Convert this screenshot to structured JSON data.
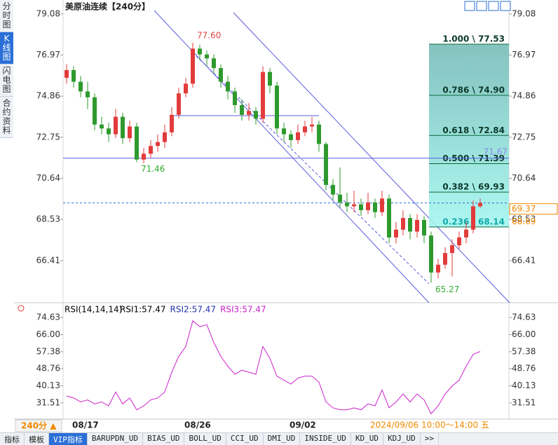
{
  "ui": {
    "sidebar": [
      "分时图",
      "K线图",
      "闪电图",
      "合约资料"
    ],
    "tabs": [
      "指标",
      "模板",
      "VIP指标",
      "BARUPDN_UD",
      "BIAS_UD",
      "BOLL_UD",
      "CCI_UD",
      "DMI_UD",
      "INSIDE_UD",
      "KD_UD",
      "KDJ_UD",
      ">>"
    ],
    "period": "240分 ▲",
    "time_range": "2024/09/06 10:00～14:00 五"
  },
  "chart_data": [
    {
      "type": "candlestick",
      "title": "美原油连续【240分】",
      "categories": [
        null,
        null,
        "08/17",
        null,
        null,
        null,
        null,
        null,
        null,
        null,
        null,
        null,
        null,
        null,
        null,
        null,
        null,
        null,
        "08/26",
        null,
        null,
        null,
        null,
        null,
        null,
        null,
        null,
        null,
        null,
        null,
        null,
        null,
        null,
        "09/02",
        null,
        null,
        null,
        null,
        null,
        null,
        null,
        null,
        null,
        null,
        null,
        null,
        null,
        null,
        null,
        null,
        null,
        null,
        null,
        null,
        null,
        null,
        null,
        null,
        null,
        null
      ],
      "open": [
        75.8,
        76.2,
        75.6,
        75.1,
        74.8,
        73.4,
        73.2,
        72.9,
        73.8,
        72.7,
        73.3,
        71.6,
        71.9,
        72.3,
        72.5,
        73.0,
        73.9,
        75.0,
        75.5,
        77.3,
        77.0,
        76.8,
        76.3,
        75.6,
        75.1,
        74.4,
        73.9,
        74.1,
        73.7,
        76.1,
        75.4,
        73.2,
        72.9,
        72.6,
        73.0,
        73.3,
        73.4,
        72.4,
        70.3,
        69.8,
        69.4,
        69.2,
        69.3,
        69.0,
        69.4,
        68.9,
        69.6,
        67.6,
        68.0,
        68.6,
        67.9,
        68.5,
        67.7,
        65.8,
        66.2,
        66.8,
        67.2,
        67.6,
        68.0,
        69.2
      ],
      "high": [
        76.5,
        76.4,
        75.9,
        75.6,
        75.0,
        73.8,
        73.5,
        74.2,
        74.0,
        73.6,
        73.5,
        72.2,
        72.6,
        72.9,
        73.4,
        74.3,
        75.3,
        75.8,
        77.6,
        77.5,
        77.2,
        77.0,
        76.5,
        75.9,
        75.3,
        74.7,
        74.5,
        74.3,
        76.4,
        76.3,
        75.6,
        73.5,
        73.1,
        73.4,
        73.6,
        73.8,
        73.6,
        72.5,
        70.6,
        71.2,
        69.9,
        70.0,
        69.6,
        69.9,
        69.6,
        70.0,
        69.8,
        68.4,
        69.0,
        68.8,
        68.8,
        68.7,
        67.9,
        66.5,
        67.1,
        67.5,
        67.9,
        68.4,
        69.5,
        69.6
      ],
      "low": [
        75.5,
        75.3,
        74.8,
        74.2,
        73.1,
        72.9,
        72.5,
        72.7,
        72.4,
        72.5,
        71.46,
        71.4,
        71.7,
        72.0,
        72.2,
        72.8,
        73.7,
        74.8,
        75.3,
        76.7,
        76.4,
        76.0,
        75.3,
        74.7,
        74.0,
        73.6,
        73.6,
        73.4,
        73.5,
        75.0,
        72.9,
        72.5,
        72.2,
        72.4,
        72.8,
        73.0,
        72.0,
        70.0,
        69.5,
        69.1,
        68.9,
        68.9,
        68.7,
        68.8,
        68.6,
        68.7,
        67.3,
        67.3,
        67.7,
        67.5,
        67.6,
        67.3,
        65.27,
        65.5,
        66.0,
        65.6,
        67.0,
        67.3,
        67.8,
        69.1
      ],
      "close": [
        76.2,
        75.6,
        75.1,
        74.8,
        73.4,
        73.2,
        72.9,
        73.8,
        72.7,
        73.3,
        71.6,
        71.9,
        72.3,
        72.5,
        73.0,
        73.9,
        75.0,
        75.5,
        77.3,
        77.0,
        76.8,
        76.3,
        75.6,
        75.1,
        74.4,
        73.9,
        74.1,
        73.7,
        76.1,
        75.4,
        73.2,
        72.9,
        72.6,
        73.0,
        73.3,
        73.4,
        72.4,
        70.3,
        69.8,
        69.4,
        69.2,
        69.3,
        69.0,
        69.4,
        68.9,
        69.6,
        67.6,
        68.0,
        68.6,
        67.9,
        68.5,
        67.7,
        65.8,
        66.2,
        66.8,
        67.2,
        67.6,
        68.0,
        69.2,
        69.37
      ],
      "high_labels": [
        null,
        null,
        null,
        null,
        null,
        null,
        null,
        null,
        null,
        null,
        null,
        null,
        null,
        null,
        null,
        null,
        null,
        null,
        "77.60",
        null,
        null,
        null,
        null,
        null,
        null,
        null,
        null,
        null,
        null,
        null,
        null,
        null,
        null,
        null,
        null,
        null,
        null,
        null,
        null,
        null,
        null,
        null,
        null,
        null,
        null,
        null,
        null,
        null,
        null,
        null,
        null,
        null,
        null,
        null,
        null,
        null,
        null,
        null,
        null,
        null
      ],
      "low_labels": [
        null,
        null,
        null,
        null,
        null,
        null,
        null,
        null,
        null,
        null,
        "71.46",
        null,
        null,
        null,
        null,
        null,
        null,
        null,
        null,
        null,
        null,
        null,
        null,
        null,
        null,
        null,
        null,
        null,
        null,
        null,
        null,
        null,
        null,
        null,
        null,
        null,
        null,
        null,
        null,
        null,
        null,
        null,
        null,
        null,
        null,
        null,
        null,
        null,
        null,
        null,
        null,
        null,
        "65.27",
        null,
        null,
        null,
        null,
        null,
        null,
        null
      ],
      "up_color": "#e23b3b",
      "down_color": "#2e9a2e",
      "ylim": [
        64.39,
        79.51
      ],
      "yticks": [
        79.08,
        76.97,
        74.86,
        72.75,
        70.64,
        68.53,
        66.41
      ],
      "fibonacci": [
        {
          "label": "1.000 \\ 77.53",
          "value": 77.53
        },
        {
          "label": "0.786 \\ 74.90",
          "value": 74.9
        },
        {
          "label": "0.618 \\ 72.84",
          "value": 72.84
        },
        {
          "label": "0.500 \\ 71.39",
          "value": 71.39
        },
        {
          "label": "0.382 \\ 69.93",
          "value": 69.93
        },
        {
          "label": "0.236 \\ 68.14",
          "value": 68.14
        }
      ],
      "horizontal_lines": [
        {
          "value": 71.67,
          "label": "71.67"
        },
        {
          "value": 73.86
        }
      ],
      "last_price": 69.37,
      "price_marker": 68.69
    },
    {
      "type": "line",
      "title": "RSI(14,14,14)",
      "legend": [
        {
          "name": "RSI1:57.47",
          "color": "#000000"
        },
        {
          "name": "RSI2:57.47",
          "color": "#2233aa"
        },
        {
          "name": "RSI3:57.47",
          "color": "#cc22cc"
        }
      ],
      "series": [
        {
          "name": "RSI3:57.47",
          "color": "#cc22cc",
          "values": [
            35,
            34,
            32,
            33,
            31,
            32,
            30,
            37,
            31,
            34,
            28,
            30,
            33,
            34,
            37,
            47,
            55,
            60,
            73,
            70,
            71,
            62,
            55,
            50,
            46,
            48,
            47,
            46,
            60,
            54,
            45,
            43,
            41,
            44,
            45,
            45,
            42,
            32,
            29,
            28,
            28,
            29,
            28,
            31,
            30,
            38,
            29,
            32,
            36,
            32,
            36,
            33,
            26,
            30,
            36,
            40,
            43,
            50,
            56,
            57.47
          ]
        }
      ],
      "ylim": [
        24.03,
        79.26
      ],
      "yticks": [
        74.63,
        {
          "value": 66,
          "label": "66.00"
        },
        57.38,
        48.76,
        40.13,
        31.51
      ]
    }
  ]
}
